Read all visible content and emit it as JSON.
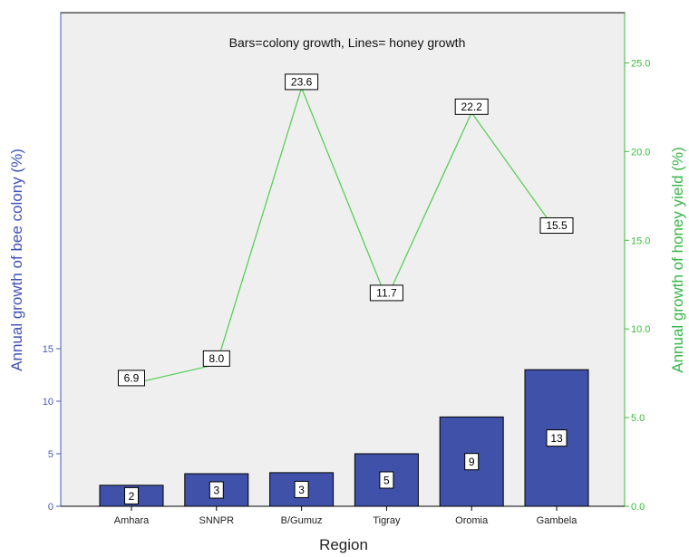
{
  "chart_data": {
    "type": "bar",
    "annotation": "Bars=colony growth,   Lines= honey growth",
    "xlabel": "Region",
    "ylabel_left": "Annual growth of bee colony (%)",
    "ylabel_right": "Annual growth of honey yield (%)",
    "categories": [
      "Amhara",
      "SNNPR",
      "B/Gumuz",
      "Tigray",
      "Oromia",
      "Gambela"
    ],
    "series": [
      {
        "type": "bar",
        "axis": "left",
        "values": [
          2,
          3.1,
          3.2,
          5,
          8.5,
          13
        ],
        "labels": [
          "2",
          "3",
          "3",
          "5",
          "9",
          "13"
        ],
        "color": "#3f51a8"
      },
      {
        "type": "line",
        "axis": "right",
        "values": [
          6.9,
          8.0,
          23.6,
          11.7,
          22.2,
          15.5
        ],
        "labels": [
          "6.9",
          "8.0",
          "23.6",
          "11.7",
          "22.2",
          "15.5"
        ],
        "color": "#5ccf5c"
      }
    ],
    "ylim_left": [
      0,
      15
    ],
    "yticks_left": [
      0,
      5,
      10,
      15
    ],
    "ytick_labels_left": [
      "0",
      "5",
      "10",
      "15"
    ],
    "ylim_right": [
      0,
      27.5
    ],
    "yticks_right": [
      0,
      5,
      10,
      15,
      20,
      25
    ],
    "ytick_labels_right": [
      "0.0",
      "5.0",
      "10.0",
      "15.0",
      "20.0",
      "25.0"
    ],
    "grid": false,
    "plot_background": "#efefef",
    "colors": {
      "left_axis": "#4a58b8",
      "right_axis": "#3cba3c"
    }
  }
}
